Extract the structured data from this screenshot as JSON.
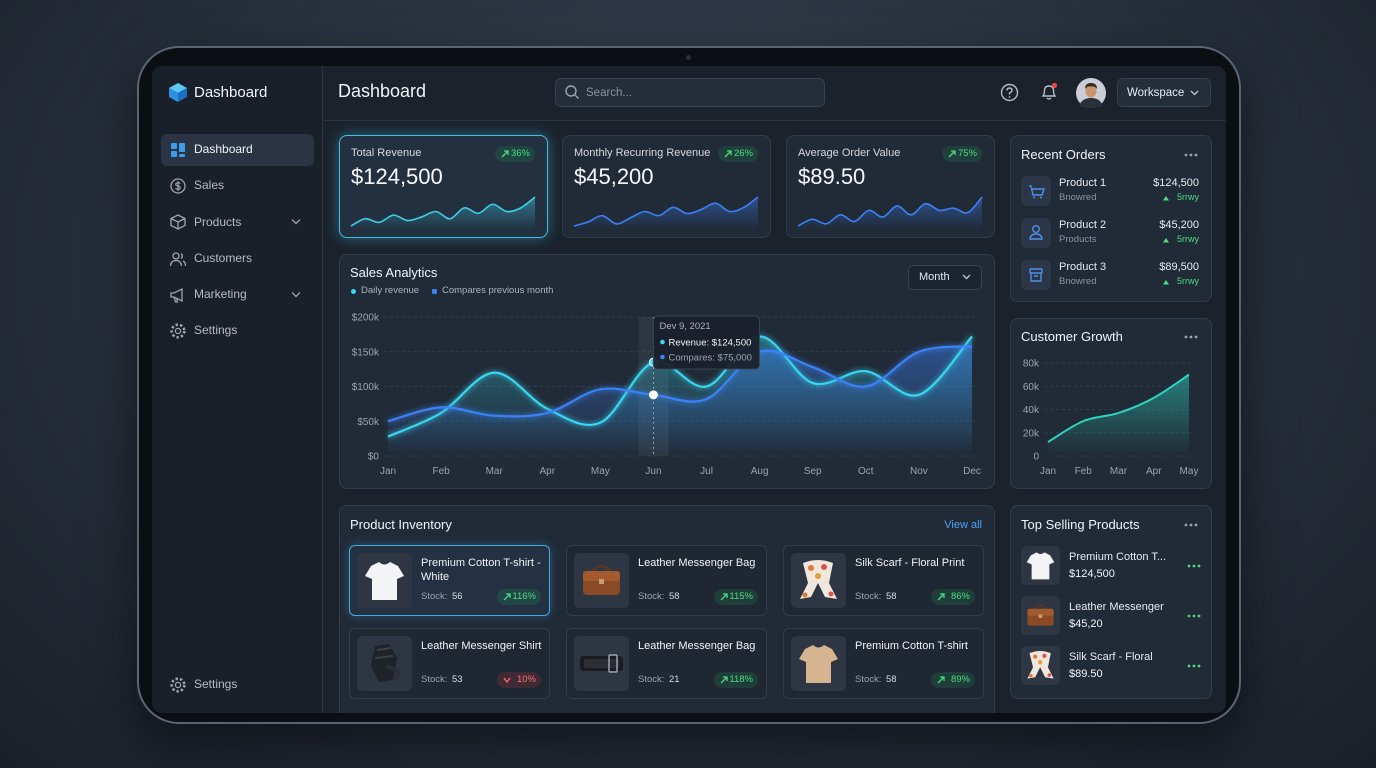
{
  "brand": "Dashboard",
  "nav": {
    "items": [
      {
        "label": "Dashboard",
        "expandable": false
      },
      {
        "label": "Sales",
        "expandable": false
      },
      {
        "label": "Products",
        "expandable": true
      },
      {
        "label": "Customers",
        "expandable": false
      },
      {
        "label": "Marketing",
        "expandable": true
      },
      {
        "label": "Settings",
        "expandable": false
      }
    ],
    "active": 0,
    "footer": "Settings"
  },
  "header": {
    "title": "Dashboard",
    "search_placeholder": "Search...",
    "workspace": "Workspace"
  },
  "kpis": [
    {
      "label": "Total Revenue",
      "value": "$124,500",
      "change": "36%",
      "spark": [
        10,
        18,
        14,
        22,
        16,
        20,
        26,
        18,
        30,
        24,
        34,
        26,
        30,
        42
      ]
    },
    {
      "label": "Monthly Recurring Revenue",
      "value": "$45,200",
      "change": "26%",
      "spark": [
        12,
        16,
        22,
        14,
        20,
        26,
        22,
        30,
        24,
        28,
        34,
        26,
        30,
        40
      ]
    },
    {
      "label": "Average Order Value",
      "value": "$89.50",
      "change": "75%",
      "spark": [
        14,
        20,
        16,
        24,
        18,
        28,
        22,
        32,
        24,
        34,
        28,
        30,
        26,
        40
      ]
    }
  ],
  "chart_data": [
    {
      "type": "line",
      "title": "Sales Analytics",
      "control": "Month",
      "categories": [
        "Jan",
        "Feb",
        "Mar",
        "Apr",
        "May",
        "Jun",
        "Jul",
        "Aug",
        "Sep",
        "Oct",
        "Nov",
        "Dec"
      ],
      "series": [
        {
          "name": "Daily revenue",
          "color": "#38d6f0",
          "values": [
            28000,
            62000,
            120000,
            68000,
            48000,
            135000,
            100000,
            172000,
            105000,
            122000,
            88000,
            172000
          ]
        },
        {
          "name": "Compares previous month",
          "color": "#3b82f6",
          "values": [
            50000,
            70000,
            58000,
            62000,
            96000,
            88000,
            82000,
            150000,
            128000,
            100000,
            150000,
            158000
          ]
        }
      ],
      "ylim": [
        0,
        200000
      ],
      "yticks": [
        {
          "value": 0,
          "label": "$0"
        },
        {
          "value": 50000,
          "label": "$50k"
        },
        {
          "value": 100000,
          "label": "$100k"
        },
        {
          "value": 150000,
          "label": "$150k"
        },
        {
          "value": 200000,
          "label": "$200k"
        }
      ],
      "grid": true,
      "tooltip": {
        "title": "Dev 9, 2021",
        "lines": [
          "Revenue: $124,500",
          "Compares: $75,000"
        ]
      }
    },
    {
      "type": "area",
      "title": "Customer Growth",
      "categories": [
        "Jan",
        "Feb",
        "Mar",
        "Apr",
        "May"
      ],
      "values": [
        12000,
        30000,
        37000,
        50000,
        70000
      ],
      "color": "#2dd4bf",
      "ylim": [
        0,
        80000
      ],
      "yticks": [
        0,
        {
          "value": 20000,
          "label": "20k"
        },
        {
          "value": 40000,
          "label": "40k"
        },
        {
          "value": 60000,
          "label": "60k"
        },
        {
          "value": 80000,
          "label": "80k"
        }
      ],
      "grid": true
    }
  ],
  "recent_orders": {
    "title": "Recent Orders",
    "items": [
      {
        "name": "Product 1",
        "sub": "Bnowred",
        "amount": "$124,500",
        "change": "5rrwy"
      },
      {
        "name": "Product 2",
        "sub": "Products",
        "amount": "$45,200",
        "change": "5rrwy"
      },
      {
        "name": "Product 3",
        "sub": "Bnowred",
        "amount": "$89,500",
        "change": "5rrwy"
      }
    ]
  },
  "inventory": {
    "title": "Product Inventory",
    "action": "View all",
    "stock_label": "Stock:",
    "items": [
      {
        "name": "Premium Cotton T-shirt - White",
        "stock": 56,
        "change": "116%",
        "trend": "up"
      },
      {
        "name": "Leather Messenger Bag",
        "stock": 58,
        "change": "115%",
        "trend": "up"
      },
      {
        "name": "Silk Scarf - Floral Print",
        "stock": 58,
        "change": "86%",
        "trend": "up"
      },
      {
        "name": "Leather Messenger Shirt",
        "stock": 53,
        "change": "10%",
        "trend": "down"
      },
      {
        "name": "Leather Messenger Bag",
        "stock": 21,
        "change": "118%",
        "trend": "up"
      },
      {
        "name": "Premium Cotton T-shirt",
        "stock": 58,
        "change": "89%",
        "trend": "up"
      }
    ]
  },
  "top_selling": {
    "title": "Top Selling Products",
    "items": [
      {
        "name": "Premium Cotton T...",
        "price": "$124,500"
      },
      {
        "name": "Leather Messenger",
        "price": "$45,20"
      },
      {
        "name": "Silk Scarf - Floral",
        "price": "$89.50"
      }
    ]
  }
}
